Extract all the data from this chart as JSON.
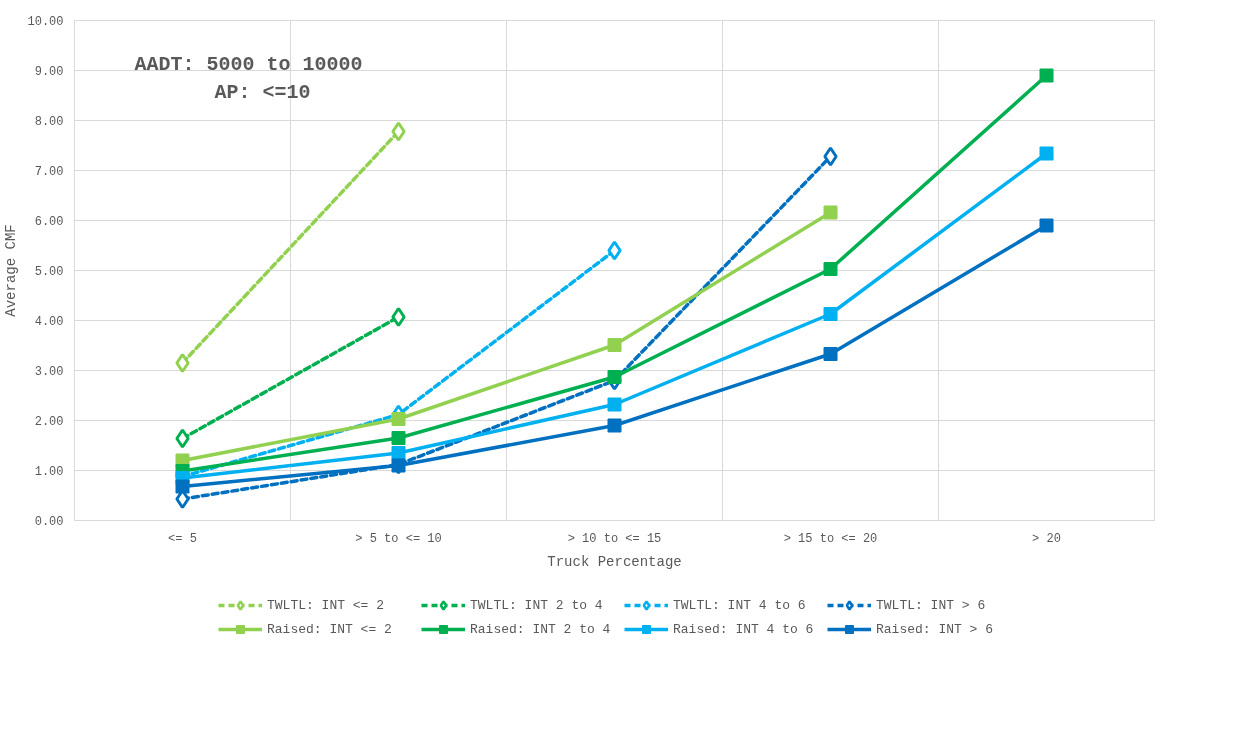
{
  "chart_data": {
    "type": "line",
    "xlabel": "Truck Percentage",
    "ylabel": "Average CMF",
    "annotations": [
      "AADT: 5000 to 10000",
      "AP: <=10"
    ],
    "categories": [
      "<= 5",
      "> 5 to <= 10",
      "> 10 to <= 15",
      "> 15 to <= 20",
      "> 20"
    ],
    "ylim": [
      0,
      10
    ],
    "yticks": [
      {
        "value": 0,
        "label": "0.00"
      },
      {
        "value": 1,
        "label": "1.00"
      },
      {
        "value": 2,
        "label": "2.00"
      },
      {
        "value": 3,
        "label": "3.00"
      },
      {
        "value": 4,
        "label": "4.00"
      },
      {
        "value": 5,
        "label": "5.00"
      },
      {
        "value": 6,
        "label": "6.00"
      },
      {
        "value": 7,
        "label": "7.00"
      },
      {
        "value": 8,
        "label": "8.00"
      },
      {
        "value": 9,
        "label": "9.00"
      },
      {
        "value": 10,
        "label": "10.00"
      }
    ],
    "grid": true,
    "legend": "bottom",
    "series": [
      {
        "name": "TWLTL: INT <= 2",
        "color": "#92d050",
        "marker": "diamond",
        "line_style": "dashed",
        "values": [
          3.15,
          7.78,
          null,
          null,
          null
        ]
      },
      {
        "name": "TWLTL: INT 2 to 4",
        "color": "#00b050",
        "marker": "diamond",
        "line_style": "dashed",
        "values": [
          1.64,
          4.07,
          null,
          null,
          null
        ]
      },
      {
        "name": "TWLTL: INT 4 to 6",
        "color": "#00b0f0",
        "marker": "diamond",
        "line_style": "dashed",
        "values": [
          0.88,
          2.12,
          5.4,
          null,
          null
        ]
      },
      {
        "name": "TWLTL: INT > 6",
        "color": "#0070c0",
        "marker": "diamond",
        "line_style": "dashed",
        "values": [
          0.43,
          1.12,
          2.8,
          7.28,
          null
        ]
      },
      {
        "name": "Raised: INT <= 2",
        "color": "#92d050",
        "marker": "square",
        "line_style": "solid",
        "values": [
          1.2,
          2.03,
          3.51,
          6.16,
          null
        ]
      },
      {
        "name": "Raised: INT 2 to 4",
        "color": "#00b050",
        "marker": "square",
        "line_style": "solid",
        "values": [
          0.99,
          1.65,
          2.87,
          5.03,
          8.9
        ]
      },
      {
        "name": "Raised: INT 4 to 6",
        "color": "#00b0f0",
        "marker": "square",
        "line_style": "solid",
        "values": [
          0.85,
          1.35,
          2.32,
          4.13,
          7.34
        ]
      },
      {
        "name": "Raised: INT > 6",
        "color": "#0070c0",
        "marker": "square",
        "line_style": "solid",
        "values": [
          0.68,
          1.1,
          1.9,
          3.33,
          5.9
        ]
      }
    ]
  }
}
